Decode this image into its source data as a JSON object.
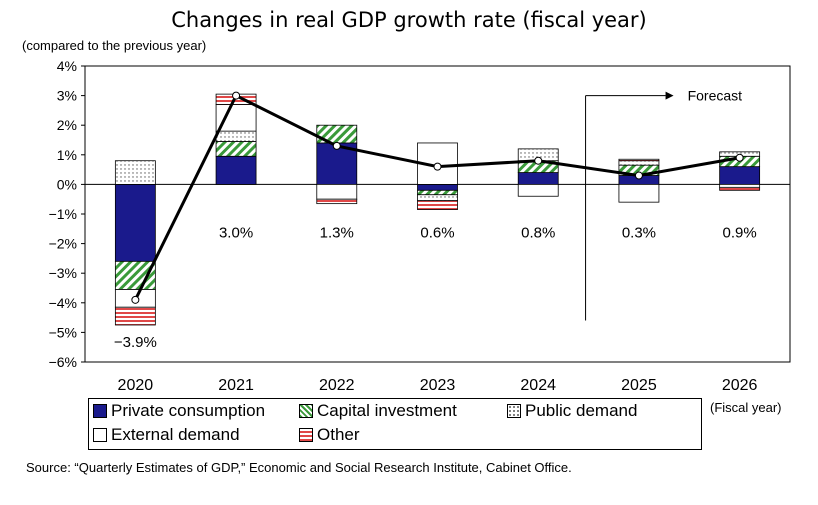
{
  "chart_data": {
    "type": "bar",
    "title": "Changes in real GDP growth rate (fiscal year)",
    "ylabel": "(compared to the previous year)",
    "xlabel": "(Fiscal year)",
    "ylim": [
      -6,
      4
    ],
    "yticks": [
      "4%",
      "3%",
      "2%",
      "1%",
      "0%",
      "−1%",
      "−2%",
      "−3%",
      "−4%",
      "−5%",
      "−6%"
    ],
    "categories": [
      "2020",
      "2021",
      "2022",
      "2023",
      "2024",
      "2025",
      "2026"
    ],
    "series": [
      {
        "name": "Private consumption",
        "values": [
          -2.6,
          0.95,
          1.4,
          -0.2,
          0.4,
          0.3,
          0.6
        ]
      },
      {
        "name": "Capital investment",
        "values": [
          -0.95,
          0.5,
          0.6,
          -0.15,
          0.4,
          0.35,
          0.35
        ]
      },
      {
        "name": "Public demand",
        "values": [
          0.8,
          0.35,
          0.0,
          -0.2,
          0.4,
          0.15,
          0.15
        ]
      },
      {
        "name": "External demand",
        "values": [
          -0.6,
          0.9,
          -0.5,
          1.4,
          -0.4,
          -0.6,
          -0.1
        ]
      },
      {
        "name": "Other",
        "values": [
          -0.6,
          0.35,
          -0.15,
          -0.3,
          0.0,
          0.05,
          -0.1
        ]
      }
    ],
    "total": {
      "values": [
        -3.9,
        3.0,
        1.3,
        0.6,
        0.8,
        0.3,
        0.9
      ],
      "labels": [
        "−3.9%",
        "3.0%",
        "1.3%",
        "0.6%",
        "0.8%",
        "0.3%",
        "0.9%"
      ]
    },
    "forecast_label": "Forecast",
    "forecast_start": "2025",
    "legend_position": "bottom",
    "colors": {
      "Private consumption": "#1a1a8c",
      "Capital investment": "#3a9a3a",
      "Public demand": "#555555",
      "External demand": "#ffffff",
      "Other": "#e04848"
    }
  },
  "source": "Source: “Quarterly Estimates of GDP,” Economic and Social Research Institute, Cabinet Office."
}
